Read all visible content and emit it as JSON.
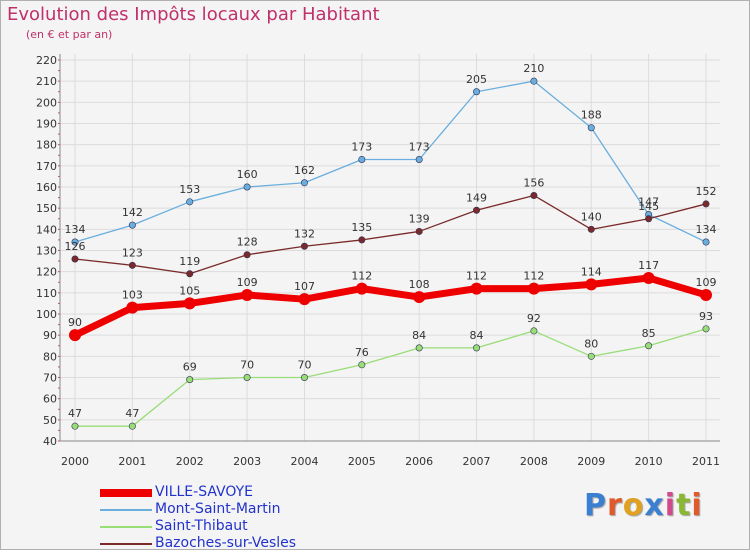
{
  "header": {
    "title": "Evolution des Impôts locaux par Habitant",
    "subtitle": "(en € et par an)"
  },
  "logo": {
    "text": [
      "P",
      "r",
      "o",
      "x",
      "i",
      "t",
      "i"
    ],
    "colors": [
      "#3b7fd1",
      "#e05a2a",
      "#e0a020",
      "#3b7fd1",
      "#d14a8a",
      "#8ab832",
      "#e05a2a"
    ]
  },
  "chart_data": {
    "type": "line",
    "title": "Evolution des Impôts locaux par Habitant",
    "subtitle": "(en € et par an)",
    "x": [
      "2000",
      "2001",
      "2002",
      "2003",
      "2004",
      "2005",
      "2006",
      "2007",
      "2008",
      "2009",
      "2010",
      "2011"
    ],
    "ylim": [
      40,
      220
    ],
    "yticks": [
      40,
      50,
      60,
      70,
      80,
      90,
      100,
      110,
      120,
      130,
      140,
      150,
      160,
      170,
      180,
      190,
      200,
      210,
      220
    ],
    "grid": true,
    "legend_position": "bottom-left",
    "series": [
      {
        "name": "VILLE-SAVOYE",
        "color": "#ee0000",
        "values": [
          90,
          103,
          105,
          109,
          107,
          112,
          108,
          112,
          112,
          114,
          117,
          109
        ]
      },
      {
        "name": "Mont-Saint-Martin",
        "color": "#6aaede",
        "values": [
          134,
          142,
          153,
          160,
          162,
          173,
          173,
          205,
          210,
          188,
          147,
          134
        ]
      },
      {
        "name": "Saint-Thibaut",
        "color": "#99dd77",
        "values": [
          47,
          47,
          69,
          70,
          70,
          76,
          84,
          84,
          92,
          80,
          85,
          93
        ]
      },
      {
        "name": "Bazoches-sur-Vesles",
        "color": "#7a2a2a",
        "values": [
          126,
          123,
          119,
          128,
          132,
          135,
          139,
          149,
          156,
          140,
          145,
          152
        ]
      }
    ]
  }
}
